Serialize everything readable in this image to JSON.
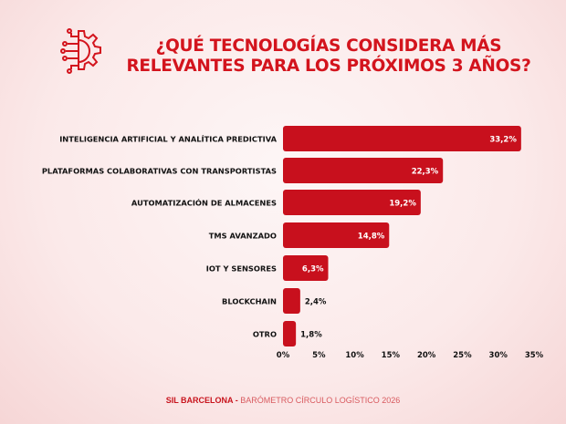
{
  "title_line1": "¿QUÉ TECNOLOGÍAS CONSIDERA MÁS",
  "title_line2": "RELEVANTES PARA LOS PRÓXIMOS 3 AÑOS?",
  "logo_icon": "gear-circuit-icon",
  "footer": {
    "brand": "SIL BARCELONA -",
    "text": " BARÓMETRO CÍRCULO  LOGÍSTICO 2026"
  },
  "colors": {
    "bar": "#c8101d",
    "title": "#d3141d"
  },
  "chart_data": {
    "type": "bar",
    "orientation": "horizontal",
    "categories": [
      "INTELIGENCIA ARTIFICIAL Y ANALÍTICA PREDICTIVA",
      "PLATAFORMAS COLABORATIVAS CON TRANSPORTISTAS",
      "AUTOMATIZACIÓN DE ALMACENES",
      "TMS AVANZADO",
      "IOT Y SENSORES",
      "BLOCKCHAIN",
      "OTRO"
    ],
    "values": [
      33.2,
      22.3,
      19.2,
      14.8,
      6.3,
      2.4,
      1.8
    ],
    "data_labels": [
      "33,2%",
      "22,3%",
      "19,2%",
      "14,8%",
      "6,3%",
      "2,4%",
      "1,8%"
    ],
    "xlim": [
      0,
      35
    ],
    "xticks": [
      "0%",
      "5%",
      "10%",
      "15%",
      "20%",
      "25%",
      "30%",
      "35%"
    ],
    "grid": false
  }
}
